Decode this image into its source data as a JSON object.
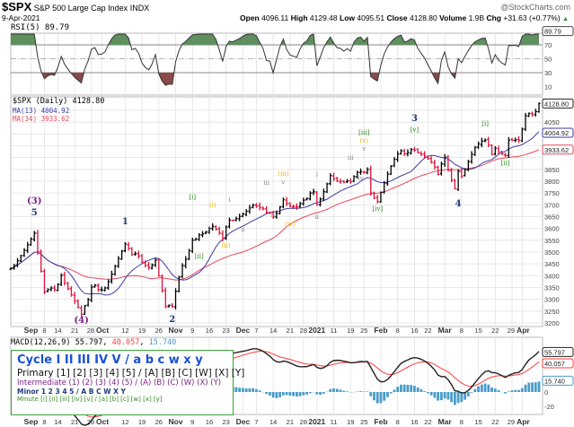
{
  "header": {
    "symbol": "$SPX",
    "name": "S&P 500 Large Cap Index",
    "exchange": "INDX",
    "watermark": "@StockCharts.com",
    "date": "9-Apr-2021",
    "open_label": "Open",
    "open": "4096.11",
    "high_label": "High",
    "high": "4129.48",
    "low_label": "Low",
    "low": "4095.51",
    "close_label": "Close",
    "close": "4128.80",
    "volume_label": "Volume",
    "volume": "1.9B",
    "chg_label": "Chg",
    "chg": "+31.63 (+0.77%)",
    "chg_icon": "triangle-up-icon"
  },
  "legend": {
    "cycle": "Cycle I II III IV V / a b c w x y",
    "primary": "Primary [1] [2] [3] [4] [5] / [A] [B] [C] [W] [X] [Y]",
    "intermediate": "Intermediate (1) (2) (3) (4) (5) / (A) (B) (C) (W) (X) (Y)",
    "minor": "Minor 1 2 3 4 5 / A B C W X Y",
    "minute": "Minute [i] [ii] [iii] [iv] [v] / [a] [b] [c] [w] [x] [y]"
  },
  "colors": {
    "up_bar": "#000000",
    "down_bar": "#e0103a",
    "ma13": "#3a3aa8",
    "ma34": "#e8465a",
    "rsi_line": "#333333",
    "rsi_overbought_fill": "#5f8f5f",
    "rsi_oversold_fill": "#8a4a4a",
    "macd_line": "#222222",
    "signal_line": "#ff3b3b",
    "histogram": "#4a9cc8",
    "cycle": "#1a4fd6",
    "primary": "#111111",
    "intermediate": "#7a1f86",
    "minor": "#1f3a7a",
    "minute": "#2e8b1e",
    "minuette": "#f0b400",
    "subminuette": "#888888"
  },
  "chart_data": [
    {
      "type": "line",
      "title": "RSI(5) 89.79",
      "indicator": "RSI(5)",
      "last_value": "89.79",
      "ylim": [
        0,
        100
      ],
      "y_ticks": [
        70,
        50,
        30,
        10
      ],
      "levels": [
        70,
        50,
        30
      ],
      "computed_from": "price close series"
    },
    {
      "type": "ohlc",
      "title": "$SPX (Daily) 4128.80",
      "series_labels": {
        "price": "$SPX (Daily) 4128.80",
        "ma13": "MA(13) 4004.92",
        "ma34": "MA(34) 3933.62"
      },
      "last_tags": {
        "price": "4128.80",
        "ma13": "4004.92",
        "ma34": "3933.62"
      },
      "ylim": [
        3175,
        4140
      ],
      "y_ticks": [
        3200,
        3250,
        3300,
        3350,
        3400,
        3450,
        3500,
        3550,
        3600,
        3650,
        3700,
        3750,
        3800,
        3850,
        3900,
        3950,
        4000,
        4050,
        4100
      ],
      "grid": true,
      "holidays": [
        "2020-09-07",
        "2020-11-26",
        "2020-12-25",
        "2021-01-01",
        "2021-01-18",
        "2021-02-15",
        "2021-04-02"
      ],
      "close_pivots": [
        [
          "2020-08-24",
          3431
        ],
        [
          "2020-08-28",
          3508
        ],
        [
          "2020-09-02",
          3580
        ],
        [
          "2020-09-08",
          3331
        ],
        [
          "2020-09-11",
          3341
        ],
        [
          "2020-09-15",
          3401
        ],
        [
          "2020-09-18",
          3319
        ],
        [
          "2020-09-23",
          3237
        ],
        [
          "2020-09-25",
          3298
        ],
        [
          "2020-09-28",
          3351
        ],
        [
          "2020-10-02",
          3348
        ],
        [
          "2020-10-12",
          3534
        ],
        [
          "2020-10-14",
          3488
        ],
        [
          "2020-10-16",
          3483
        ],
        [
          "2020-10-21",
          3435
        ],
        [
          "2020-10-23",
          3465
        ],
        [
          "2020-10-28",
          3271
        ],
        [
          "2020-10-30",
          3270
        ],
        [
          "2020-11-04",
          3443
        ],
        [
          "2020-11-09",
          3550
        ],
        [
          "2020-11-11",
          3572
        ],
        [
          "2020-11-13",
          3585
        ],
        [
          "2020-11-17",
          3609
        ],
        [
          "2020-11-20",
          3557
        ],
        [
          "2020-11-24",
          3635
        ],
        [
          "2020-12-01",
          3662
        ],
        [
          "2020-12-04",
          3699
        ],
        [
          "2020-12-10",
          3668
        ],
        [
          "2020-12-14",
          3647
        ],
        [
          "2020-12-17",
          3722
        ],
        [
          "2020-12-21",
          3694
        ],
        [
          "2020-12-23",
          3690
        ],
        [
          "2020-12-29",
          3727
        ],
        [
          "2020-12-31",
          3756
        ],
        [
          "2021-01-04",
          3700
        ],
        [
          "2021-01-08",
          3824
        ],
        [
          "2021-01-12",
          3801
        ],
        [
          "2021-01-14",
          3795
        ],
        [
          "2021-01-19",
          3798
        ],
        [
          "2021-01-22",
          3841
        ],
        [
          "2021-01-26",
          3849
        ],
        [
          "2021-01-27",
          3750
        ],
        [
          "2021-01-29",
          3714
        ],
        [
          "2021-02-03",
          3830
        ],
        [
          "2021-02-08",
          3915
        ],
        [
          "2021-02-12",
          3934
        ],
        [
          "2021-02-16",
          3932
        ],
        [
          "2021-02-19",
          3906
        ],
        [
          "2021-02-23",
          3881
        ],
        [
          "2021-02-25",
          3829
        ],
        [
          "2021-03-01",
          3901
        ],
        [
          "2021-03-04",
          3768
        ],
        [
          "2021-03-05",
          3842
        ],
        [
          "2021-03-08",
          3821
        ],
        [
          "2021-03-12",
          3943
        ],
        [
          "2021-03-17",
          3974
        ],
        [
          "2021-03-19",
          3913
        ],
        [
          "2021-03-22",
          3940
        ],
        [
          "2021-03-25",
          3909
        ],
        [
          "2021-03-26",
          3974
        ],
        [
          "2021-03-31",
          3973
        ],
        [
          "2021-04-01",
          4020
        ],
        [
          "2021-04-05",
          4078
        ],
        [
          "2021-04-07",
          4080
        ],
        [
          "2021-04-09",
          4128.8
        ]
      ],
      "annotations": [
        {
          "date": "2020-09-02",
          "price": 3705,
          "text": "(3)",
          "degree": "intermediate"
        },
        {
          "date": "2020-09-02",
          "price": 3655,
          "text": "5",
          "degree": "minor"
        },
        {
          "date": "2020-09-23",
          "price": 3165,
          "text": "(4)",
          "degree": "intermediate"
        },
        {
          "date": "2020-10-12",
          "price": 3618,
          "text": "1",
          "degree": "minor"
        },
        {
          "date": "2020-10-30",
          "price": 3196,
          "text": "2",
          "degree": "minor"
        },
        {
          "date": "2020-11-09",
          "price": 3724,
          "text": "[i]",
          "degree": "minute"
        },
        {
          "date": "2020-11-11",
          "price": 3473,
          "text": "[ii]",
          "degree": "minute"
        },
        {
          "date": "2020-11-17",
          "price": 3690,
          "text": "(i)",
          "degree": "minuette"
        },
        {
          "date": "2020-11-23",
          "price": 3519,
          "text": "(ii)",
          "degree": "minuette"
        },
        {
          "date": "2020-11-24",
          "price": 3712,
          "text": "i",
          "degree": "subminuette"
        },
        {
          "date": "2020-12-01",
          "price": 3587,
          "text": "ii",
          "degree": "subminuette"
        },
        {
          "date": "2020-12-10",
          "price": 3785,
          "text": "iii",
          "degree": "subminuette"
        },
        {
          "date": "2020-12-14",
          "price": 3648,
          "text": "iv",
          "degree": "subminuette"
        },
        {
          "date": "2020-12-17",
          "price": 3823,
          "text": "(iii)",
          "degree": "minuette"
        },
        {
          "date": "2020-12-17",
          "price": 3787,
          "text": "v",
          "degree": "subminuette"
        },
        {
          "date": "2020-12-21",
          "price": 3610,
          "text": "(iv)",
          "degree": "minuette"
        },
        {
          "date": "2021-01-04",
          "price": 3820,
          "text": "i",
          "degree": "subminuette"
        },
        {
          "date": "2021-01-04",
          "price": 3640,
          "text": "ii",
          "degree": "subminuette"
        },
        {
          "date": "2021-01-19",
          "price": 3891,
          "text": "iii",
          "degree": "subminuette"
        },
        {
          "date": "2021-01-22",
          "price": 3804,
          "text": "iv",
          "degree": "subminuette"
        },
        {
          "date": "2021-01-25",
          "price": 3930,
          "text": "v",
          "degree": "subminuette"
        },
        {
          "date": "2021-01-25",
          "price": 3955,
          "text": "(v)",
          "degree": "minuette"
        },
        {
          "date": "2021-01-25",
          "price": 3997,
          "text": "[iii]",
          "degree": "minute"
        },
        {
          "date": "2021-01-29",
          "price": 3675,
          "text": "[iv]",
          "degree": "minute"
        },
        {
          "date": "2021-02-16",
          "price": 4054,
          "text": "3",
          "degree": "minor"
        },
        {
          "date": "2021-02-16",
          "price": 4009,
          "text": "[v]",
          "degree": "minute"
        },
        {
          "date": "2021-03-05",
          "price": 3694,
          "text": "4",
          "degree": "minor"
        },
        {
          "date": "2021-03-17",
          "price": 4035,
          "text": "[i]",
          "degree": "minute"
        },
        {
          "date": "2021-03-25",
          "price": 3868,
          "text": "[ii]",
          "degree": "minute"
        }
      ],
      "x_ticks": [
        {
          "date": "2020-09-01",
          "label": "Sep",
          "month": true
        },
        {
          "date": "2020-09-08",
          "label": "8"
        },
        {
          "date": "2020-09-14",
          "label": "14"
        },
        {
          "date": "2020-09-21",
          "label": "21"
        },
        {
          "date": "2020-09-28",
          "label": "28"
        },
        {
          "date": "2020-10-01",
          "label": "Oct",
          "month": true
        },
        {
          "date": "2020-10-12",
          "label": "12"
        },
        {
          "date": "2020-10-19",
          "label": "19"
        },
        {
          "date": "2020-10-26",
          "label": "26"
        },
        {
          "date": "2020-11-02",
          "label": "Nov",
          "month": true
        },
        {
          "date": "2020-11-09",
          "label": "9"
        },
        {
          "date": "2020-11-16",
          "label": "16"
        },
        {
          "date": "2020-11-23",
          "label": "23"
        },
        {
          "date": "2020-12-01",
          "label": "Dec",
          "month": true
        },
        {
          "date": "2020-12-07",
          "label": "7"
        },
        {
          "date": "2020-12-14",
          "label": "14"
        },
        {
          "date": "2020-12-21",
          "label": "21"
        },
        {
          "date": "2020-12-28",
          "label": "28"
        },
        {
          "date": "2021-01-04",
          "label": "2021",
          "month": true
        },
        {
          "date": "2021-01-11",
          "label": "11"
        },
        {
          "date": "2021-01-19",
          "label": "19"
        },
        {
          "date": "2021-01-25",
          "label": "25"
        },
        {
          "date": "2021-02-01",
          "label": "Feb",
          "month": true
        },
        {
          "date": "2021-02-08",
          "label": "8"
        },
        {
          "date": "2021-02-16",
          "label": "16"
        },
        {
          "date": "2021-02-22",
          "label": "22"
        },
        {
          "date": "2021-03-01",
          "label": "Mar",
          "month": true
        },
        {
          "date": "2021-03-08",
          "label": "8"
        },
        {
          "date": "2021-03-15",
          "label": "15"
        },
        {
          "date": "2021-03-22",
          "label": "22"
        },
        {
          "date": "2021-03-29",
          "label": "29"
        },
        {
          "date": "2021-04-01",
          "label": "Apr",
          "month": true
        }
      ]
    },
    {
      "type": "line+bar",
      "title": "MACD(12,26,9) 55.797, 40.057, 15.740",
      "indicator": "MACD(12,26,9)",
      "labels": {
        "macd": "55.797",
        "signal": "40.057",
        "histogram": "15.740"
      },
      "y_ticks": [
        20,
        0,
        -20
      ],
      "computed_from": "price close series"
    }
  ]
}
